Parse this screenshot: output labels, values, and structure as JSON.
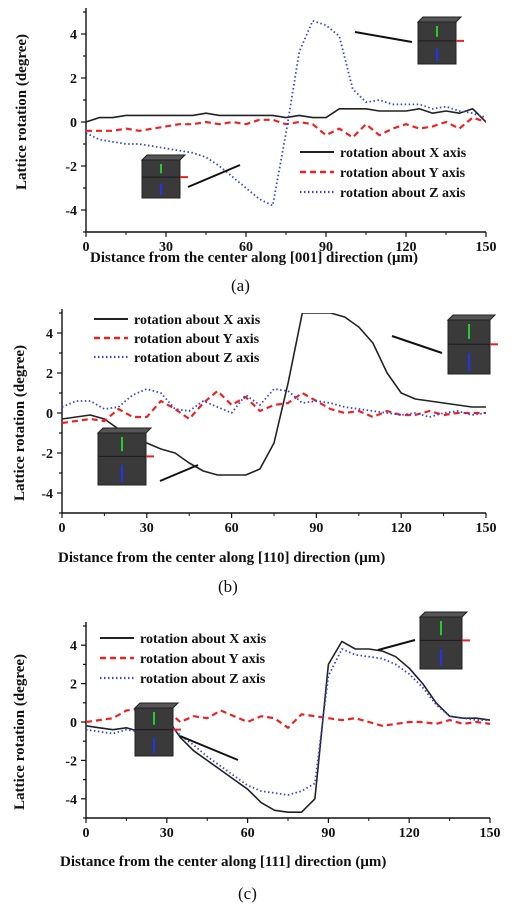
{
  "colors": {
    "x_axis_series": "#222222",
    "y_axis_series": "#ee2222",
    "z_axis_series": "#3344dd",
    "cube": "#3a3a3a"
  },
  "chart_data": [
    {
      "type": "line",
      "caption": "(a)",
      "xlabel": "Distance from the center along [001] direction (μm)",
      "ylabel": "Lattice rotation (degree)",
      "xlim": [
        0,
        150
      ],
      "ylim": [
        -5,
        5
      ],
      "xticks": [
        "0",
        "30",
        "60",
        "90",
        "120",
        "150"
      ],
      "yticks": [
        "-4",
        "-2",
        "0",
        "2",
        "4"
      ],
      "legend_position": "bottom-right",
      "series": [
        {
          "name": "rotation about X axis",
          "style": "solid",
          "x": [
            0,
            5,
            10,
            15,
            20,
            25,
            30,
            35,
            40,
            45,
            50,
            55,
            60,
            65,
            70,
            75,
            80,
            85,
            90,
            95,
            100,
            105,
            110,
            115,
            120,
            125,
            130,
            135,
            140,
            145,
            150
          ],
          "y": [
            0.0,
            0.2,
            0.2,
            0.3,
            0.3,
            0.3,
            0.3,
            0.3,
            0.3,
            0.4,
            0.3,
            0.3,
            0.3,
            0.3,
            0.3,
            0.2,
            0.3,
            0.2,
            0.2,
            0.6,
            0.6,
            0.6,
            0.5,
            0.5,
            0.5,
            0.6,
            0.4,
            0.5,
            0.4,
            0.6,
            0.0
          ]
        },
        {
          "name": "rotation about Y axis",
          "style": "dashed",
          "x": [
            0,
            5,
            10,
            15,
            20,
            25,
            30,
            35,
            40,
            45,
            50,
            55,
            60,
            65,
            70,
            75,
            80,
            85,
            90,
            95,
            100,
            105,
            110,
            115,
            120,
            125,
            130,
            135,
            140,
            145,
            150
          ],
          "y": [
            -0.4,
            -0.4,
            -0.4,
            -0.3,
            -0.4,
            -0.3,
            -0.2,
            -0.1,
            -0.1,
            0.0,
            -0.1,
            0.0,
            -0.1,
            0.1,
            0.1,
            -0.1,
            0.0,
            -0.1,
            -0.6,
            -0.3,
            -0.7,
            -0.1,
            -0.6,
            -0.3,
            -0.1,
            -0.3,
            -0.2,
            0.0,
            -0.3,
            0.2,
            0.0
          ]
        },
        {
          "name": "rotation about Z axis",
          "style": "dotted",
          "x": [
            0,
            5,
            10,
            15,
            20,
            25,
            30,
            35,
            40,
            45,
            50,
            55,
            60,
            65,
            70,
            75,
            80,
            85,
            90,
            95,
            100,
            105,
            110,
            115,
            120,
            125,
            130,
            135,
            140,
            145,
            150
          ],
          "y": [
            -0.5,
            -0.8,
            -0.9,
            -1.0,
            -1.0,
            -1.1,
            -1.2,
            -1.3,
            -1.4,
            -1.6,
            -2.0,
            -2.5,
            -3.0,
            -3.5,
            -3.8,
            -0.5,
            3.2,
            4.6,
            4.4,
            3.9,
            1.5,
            0.9,
            1.0,
            0.8,
            0.8,
            0.8,
            0.6,
            0.7,
            0.5,
            0.4,
            0.2
          ]
        }
      ]
    },
    {
      "type": "line",
      "caption": "(b)",
      "xlabel": "Distance from the center along [110] direction (μm)",
      "ylabel": "Lattice rotation (degree)",
      "xlim": [
        0,
        150
      ],
      "ylim": [
        -5,
        5
      ],
      "xticks": [
        "0",
        "30",
        "60",
        "90",
        "120",
        "150"
      ],
      "yticks": [
        "-4",
        "-2",
        "0",
        "2",
        "4"
      ],
      "legend_position": "top-left",
      "series": [
        {
          "name": "rotation about X axis",
          "style": "solid",
          "x": [
            0,
            5,
            10,
            15,
            20,
            25,
            30,
            35,
            40,
            45,
            50,
            55,
            60,
            65,
            70,
            75,
            80,
            85,
            90,
            95,
            100,
            105,
            110,
            115,
            120,
            125,
            130,
            135,
            140,
            145,
            150
          ],
          "y": [
            -0.3,
            -0.2,
            -0.1,
            -0.3,
            -0.8,
            -1.2,
            -1.5,
            -1.8,
            -2.0,
            -2.5,
            -2.9,
            -3.1,
            -3.1,
            -3.1,
            -2.8,
            -1.5,
            1.5,
            5.0,
            5.0,
            5.0,
            4.8,
            4.3,
            3.5,
            2.0,
            1.0,
            0.7,
            0.6,
            0.5,
            0.4,
            0.3,
            0.3
          ]
        },
        {
          "name": "rotation about Y axis",
          "style": "dashed",
          "x": [
            0,
            5,
            10,
            15,
            20,
            25,
            30,
            35,
            40,
            45,
            50,
            55,
            60,
            65,
            70,
            75,
            80,
            85,
            90,
            95,
            100,
            105,
            110,
            115,
            120,
            125,
            130,
            135,
            140,
            145,
            150
          ],
          "y": [
            -0.5,
            -0.4,
            -0.3,
            -0.4,
            0.2,
            -0.2,
            -0.2,
            0.6,
            0.2,
            -0.3,
            0.5,
            1.1,
            0.4,
            0.8,
            0.1,
            0.4,
            0.5,
            1.0,
            0.6,
            0.2,
            0.0,
            0.1,
            -0.2,
            0.1,
            -0.1,
            -0.1,
            0.1,
            -0.1,
            0.0,
            0.0,
            0.0
          ]
        },
        {
          "name": "rotation about Z axis",
          "style": "dotted",
          "x": [
            0,
            5,
            10,
            15,
            20,
            25,
            30,
            35,
            40,
            45,
            50,
            55,
            60,
            65,
            70,
            75,
            80,
            85,
            90,
            95,
            100,
            105,
            110,
            115,
            120,
            125,
            130,
            135,
            140,
            145,
            150
          ],
          "y": [
            0.3,
            0.6,
            0.6,
            0.2,
            0.3,
            0.9,
            1.2,
            1.0,
            0.2,
            0.1,
            0.6,
            0.3,
            0.0,
            0.9,
            0.4,
            1.2,
            1.1,
            0.5,
            0.6,
            0.5,
            0.3,
            0.2,
            0.1,
            0.0,
            -0.1,
            0.0,
            -0.2,
            0.0,
            0.1,
            -0.1,
            0.0
          ]
        }
      ]
    },
    {
      "type": "line",
      "caption": "(c)",
      "xlabel": "Distance from the center along [111] direction (μm)",
      "ylabel": "Lattice rotation (degree)",
      "xlim": [
        0,
        150
      ],
      "ylim": [
        -5,
        5
      ],
      "xticks": [
        "0",
        "30",
        "60",
        "90",
        "120",
        "150"
      ],
      "yticks": [
        "-4",
        "-2",
        "0",
        "2",
        "4"
      ],
      "legend_position": "top-left",
      "series": [
        {
          "name": "rotation about X axis",
          "style": "solid",
          "x": [
            0,
            5,
            10,
            15,
            20,
            25,
            30,
            35,
            40,
            45,
            50,
            55,
            60,
            65,
            70,
            75,
            80,
            85,
            90,
            95,
            100,
            105,
            110,
            115,
            120,
            125,
            130,
            135,
            140,
            145,
            150
          ],
          "y": [
            -0.2,
            -0.3,
            -0.4,
            -0.3,
            -0.5,
            0.0,
            0.2,
            -0.8,
            -1.5,
            -2.0,
            -2.5,
            -3.0,
            -3.5,
            -4.2,
            -4.6,
            -4.7,
            -4.7,
            -4.0,
            3.0,
            4.2,
            3.8,
            3.8,
            3.7,
            3.4,
            2.8,
            2.0,
            1.0,
            0.3,
            0.2,
            0.2,
            0.1
          ]
        },
        {
          "name": "rotation about Y axis",
          "style": "dashed",
          "x": [
            0,
            5,
            10,
            15,
            20,
            25,
            30,
            35,
            40,
            45,
            50,
            55,
            60,
            65,
            70,
            75,
            80,
            85,
            90,
            95,
            100,
            105,
            110,
            115,
            120,
            125,
            130,
            135,
            140,
            145,
            150
          ],
          "y": [
            0.0,
            0.1,
            0.2,
            0.6,
            0.7,
            0.2,
            0.6,
            0.0,
            0.3,
            0.2,
            0.6,
            0.3,
            0.0,
            0.3,
            0.2,
            -0.3,
            0.4,
            0.3,
            0.2,
            0.1,
            0.2,
            0.0,
            -0.2,
            -0.1,
            0.0,
            0.0,
            -0.1,
            0.1,
            -0.1,
            0.0,
            -0.1
          ]
        },
        {
          "name": "rotation about Z axis",
          "style": "dotted",
          "x": [
            0,
            5,
            10,
            15,
            20,
            25,
            30,
            35,
            40,
            45,
            50,
            55,
            60,
            65,
            70,
            75,
            80,
            85,
            90,
            95,
            100,
            105,
            110,
            115,
            120,
            125,
            130,
            135,
            140,
            145,
            150
          ],
          "y": [
            -0.4,
            -0.5,
            -0.6,
            -0.4,
            -0.5,
            -0.2,
            0.0,
            -0.7,
            -1.2,
            -1.8,
            -2.3,
            -2.8,
            -3.3,
            -3.6,
            -3.7,
            -3.8,
            -3.6,
            -3.2,
            2.4,
            3.8,
            3.5,
            3.4,
            3.3,
            3.0,
            2.5,
            1.8,
            0.9,
            0.3,
            0.2,
            0.1,
            0.1
          ]
        }
      ]
    }
  ]
}
